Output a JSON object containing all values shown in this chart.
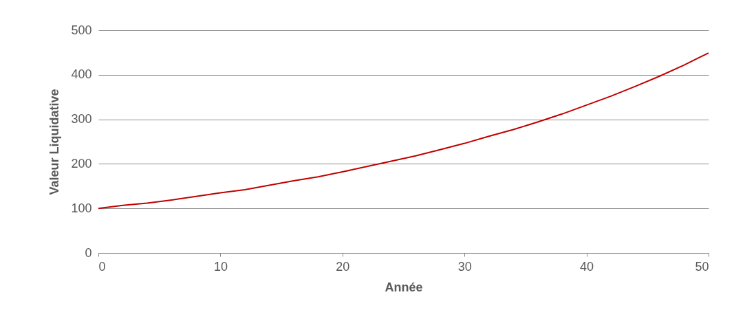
{
  "chart_data": {
    "type": "line",
    "xlabel": "Année",
    "ylabel": "Valeur Liquidative",
    "x": [
      0,
      2,
      4,
      6,
      8,
      10,
      12,
      14,
      16,
      18,
      20,
      22,
      24,
      26,
      28,
      30,
      32,
      34,
      36,
      38,
      40,
      42,
      44,
      46,
      48,
      50
    ],
    "series": [
      {
        "color": "#c00000",
        "values": [
          100,
          107,
          112,
          119,
          127,
          135,
          142,
          152,
          162,
          171,
          182,
          194,
          206,
          218,
          232,
          246,
          262,
          277,
          294,
          312,
          332,
          352,
          374,
          397,
          422,
          449
        ]
      }
    ],
    "xlim": [
      0,
      50
    ],
    "xticks": [
      0,
      10,
      20,
      30,
      40,
      50
    ],
    "ylim": [
      0,
      500
    ],
    "yticks": [
      0,
      100,
      200,
      300,
      400,
      500
    ],
    "grid": "y",
    "marker": "none",
    "line_style": "solid"
  }
}
